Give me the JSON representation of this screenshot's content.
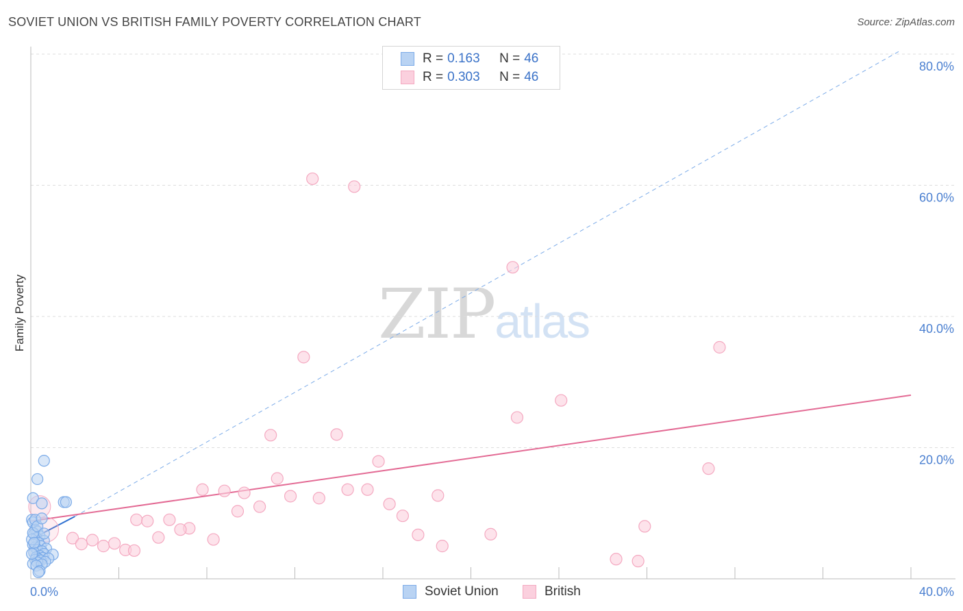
{
  "header": {
    "title": "SOVIET UNION VS BRITISH FAMILY POVERTY CORRELATION CHART",
    "source": "Source: ZipAtlas.com"
  },
  "legend": {
    "soviet": {
      "r_label": "R =",
      "r_value": "0.163",
      "n_label": "N =",
      "n_value": "46"
    },
    "british": {
      "r_label": "R =",
      "r_value": "0.303",
      "n_label": "N =",
      "n_value": "46"
    }
  },
  "watermark": {
    "zip": "ZIP",
    "atlas": "atlas"
  },
  "chart_data": {
    "type": "scatter",
    "title": "SOVIET UNION VS BRITISH FAMILY POVERTY CORRELATION CHART",
    "xlabel": "",
    "ylabel": "Family Poverty",
    "xlim": [
      0,
      40
    ],
    "ylim": [
      0,
      80
    ],
    "x_tick_labels": [
      "0.0%",
      "40.0%"
    ],
    "y_ticks": [
      20,
      40,
      60,
      80
    ],
    "y_tick_labels": [
      "20.0%",
      "40.0%",
      "60.0%",
      "80.0%"
    ],
    "grid": true,
    "legend_position": "top-center",
    "colors": {
      "soviet": "#7aaae8",
      "soviet_line": "#2d6fd0",
      "british": "#f4a8c0",
      "british_line": "#e36a94",
      "tick": "#4a7fd0"
    },
    "series": [
      {
        "name": "Soviet Union",
        "points": [
          [
            0.1,
            12.3
          ],
          [
            0.5,
            11.5
          ],
          [
            1.5,
            11.7
          ],
          [
            1.6,
            11.7
          ],
          [
            0.6,
            18.0
          ],
          [
            0.3,
            15.2
          ],
          [
            0.05,
            9.0
          ],
          [
            0.1,
            8.6
          ],
          [
            0.2,
            7.5
          ],
          [
            0.3,
            7.2
          ],
          [
            0.15,
            6.8
          ],
          [
            0.4,
            6.5
          ],
          [
            0.25,
            6.2
          ],
          [
            0.6,
            5.8
          ],
          [
            0.35,
            5.5
          ],
          [
            0.1,
            5.2
          ],
          [
            0.45,
            5.0
          ],
          [
            0.2,
            4.8
          ],
          [
            0.7,
            4.6
          ],
          [
            0.3,
            4.4
          ],
          [
            0.5,
            4.2
          ],
          [
            0.15,
            4.0
          ],
          [
            0.6,
            3.8
          ],
          [
            1.0,
            3.7
          ],
          [
            0.4,
            3.5
          ],
          [
            0.25,
            3.3
          ],
          [
            0.55,
            3.2
          ],
          [
            0.8,
            3.1
          ],
          [
            0.35,
            3.0
          ],
          [
            0.2,
            2.9
          ],
          [
            0.45,
            2.8
          ],
          [
            0.65,
            2.6
          ],
          [
            0.3,
            2.5
          ],
          [
            0.1,
            2.3
          ],
          [
            0.5,
            2.2
          ],
          [
            0.25,
            2.0
          ],
          [
            0.4,
            1.2
          ],
          [
            0.35,
            1.0
          ],
          [
            0.05,
            6.0
          ],
          [
            0.1,
            7.0
          ],
          [
            0.2,
            9.0
          ],
          [
            0.3,
            8.0
          ],
          [
            0.15,
            5.5
          ],
          [
            0.05,
            3.8
          ],
          [
            0.6,
            6.9
          ],
          [
            0.5,
            9.2
          ]
        ]
      },
      {
        "name": "British",
        "points": [
          [
            12.8,
            61.0
          ],
          [
            14.7,
            59.8
          ],
          [
            21.9,
            47.5
          ],
          [
            12.4,
            33.8
          ],
          [
            31.3,
            35.3
          ],
          [
            24.1,
            27.2
          ],
          [
            22.1,
            24.6
          ],
          [
            10.9,
            21.9
          ],
          [
            13.9,
            22.0
          ],
          [
            15.8,
            17.9
          ],
          [
            30.8,
            16.8
          ],
          [
            11.2,
            15.3
          ],
          [
            7.8,
            13.6
          ],
          [
            8.8,
            13.4
          ],
          [
            9.7,
            13.1
          ],
          [
            11.8,
            12.6
          ],
          [
            13.1,
            12.3
          ],
          [
            14.4,
            13.6
          ],
          [
            15.3,
            13.6
          ],
          [
            18.5,
            12.7
          ],
          [
            10.4,
            11.0
          ],
          [
            9.4,
            10.3
          ],
          [
            16.3,
            11.4
          ],
          [
            16.9,
            9.6
          ],
          [
            4.8,
            9.0
          ],
          [
            5.3,
            8.8
          ],
          [
            6.3,
            9.0
          ],
          [
            7.2,
            7.7
          ],
          [
            6.8,
            7.5
          ],
          [
            17.6,
            6.7
          ],
          [
            20.9,
            6.8
          ],
          [
            27.9,
            8.0
          ],
          [
            5.8,
            6.3
          ],
          [
            8.3,
            6.0
          ],
          [
            1.9,
            6.2
          ],
          [
            2.3,
            5.3
          ],
          [
            2.8,
            5.9
          ],
          [
            3.3,
            5.0
          ],
          [
            3.8,
            5.4
          ],
          [
            4.3,
            4.4
          ],
          [
            4.7,
            4.3
          ],
          [
            18.7,
            5.0
          ],
          [
            26.6,
            3.0
          ],
          [
            27.6,
            2.7
          ],
          [
            0.4,
            11.0
          ],
          [
            0.7,
            7.5
          ]
        ]
      }
    ],
    "trend_lines": [
      {
        "series": "Soviet Union",
        "style": "solid",
        "x": [
          0,
          2.0
        ],
        "y": [
          6.0,
          9.5
        ]
      },
      {
        "series": "Soviet Union",
        "style": "dashed",
        "x": [
          2.0,
          39.5
        ],
        "y": [
          9.5,
          80.5
        ]
      },
      {
        "series": "British",
        "style": "solid",
        "x": [
          0,
          40
        ],
        "y": [
          8.8,
          28.0
        ]
      }
    ]
  },
  "bottom_legend": {
    "soviet": "Soviet Union",
    "british": "British"
  }
}
